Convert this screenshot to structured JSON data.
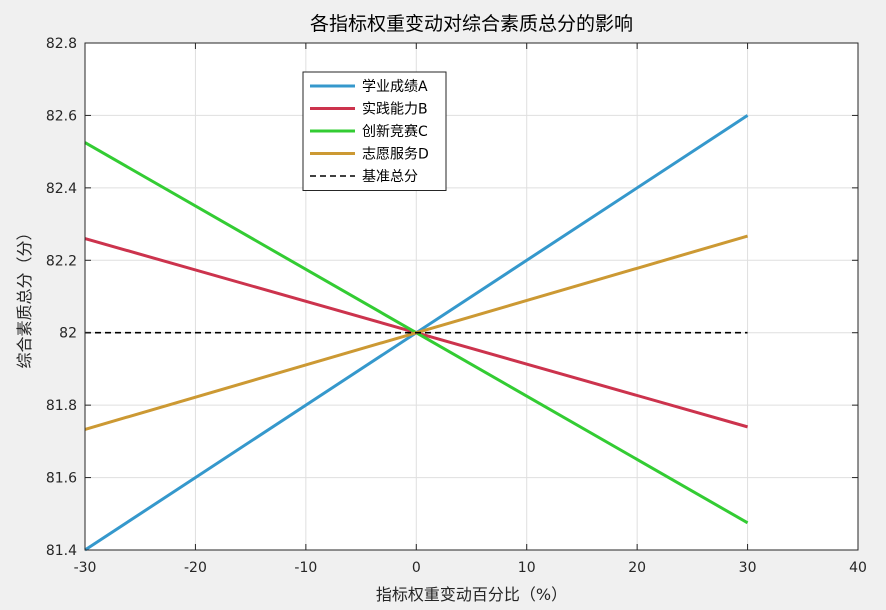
{
  "chart_data": {
    "type": "line",
    "title": "各指标权重变动对综合素质总分的影响",
    "xlabel": "指标权重变动百分比（%）",
    "ylabel": "综合素质总分（分）",
    "xlim": [
      -30,
      40
    ],
    "ylim": [
      81.4,
      82.8
    ],
    "xticks": [
      "-30",
      "-20",
      "-10",
      "0",
      "10",
      "20",
      "30",
      "40"
    ],
    "yticks": [
      "81.4",
      "81.6",
      "81.8",
      "82",
      "82.2",
      "82.4",
      "82.6",
      "82.8"
    ],
    "grid": true,
    "legend_position": "upper-left",
    "series": [
      {
        "name": "学业成绩A",
        "color": "#3598cc",
        "style": "solid",
        "x": [
          -30,
          30
        ],
        "y": [
          81.4,
          82.6
        ]
      },
      {
        "name": "实践能力B",
        "color": "#cc334d",
        "style": "solid",
        "x": [
          -30,
          30
        ],
        "y": [
          82.26,
          81.74
        ]
      },
      {
        "name": "创新竞赛C",
        "color": "#33cc33",
        "style": "solid",
        "x": [
          -30,
          30
        ],
        "y": [
          82.525,
          81.475
        ]
      },
      {
        "name": "志愿服务D",
        "color": "#cc9933",
        "style": "solid",
        "x": [
          -30,
          30
        ],
        "y": [
          81.733,
          82.267
        ]
      },
      {
        "name": "基准总分",
        "color": "#000000",
        "style": "dashed",
        "x": [
          -30,
          30
        ],
        "y": [
          82,
          82
        ]
      }
    ]
  }
}
